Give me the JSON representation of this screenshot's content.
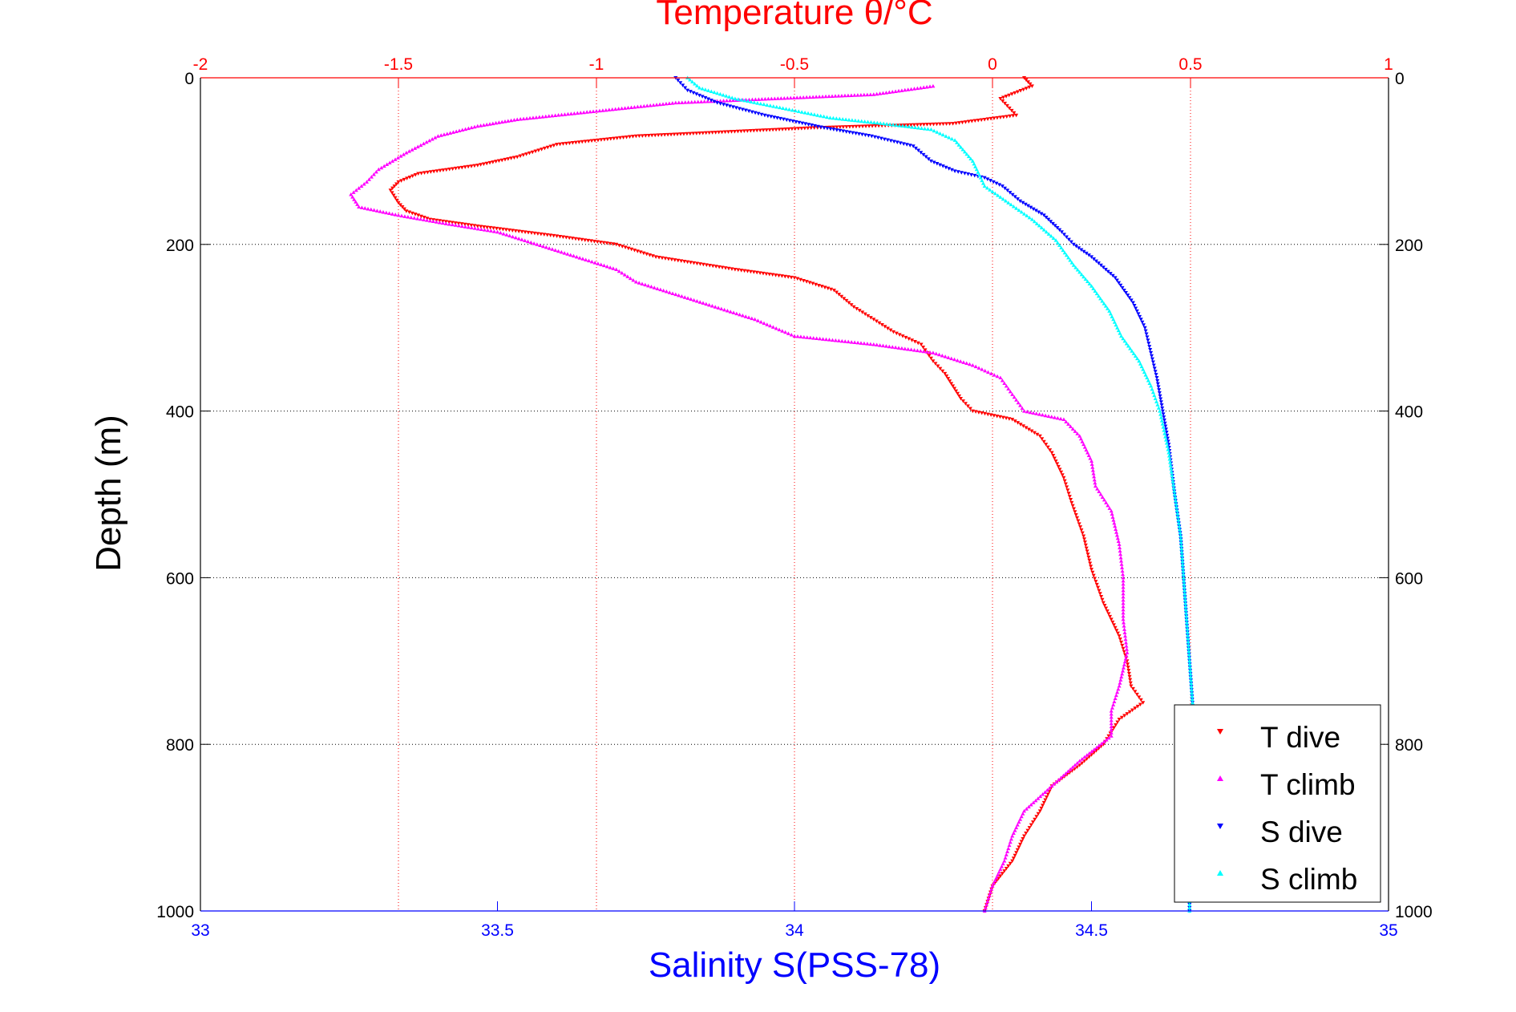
{
  "chart_data": {
    "type": "scatter",
    "title": "",
    "temperature_axis": {
      "label": "Temperature θ/°C",
      "range": [
        -2,
        1
      ],
      "ticks": [
        "-2",
        "-1.5",
        "-1",
        "-0.5",
        "0",
        "0.5",
        "1"
      ],
      "position": "top",
      "color": "#ff0000"
    },
    "salinity_axis": {
      "label": "Salinity S(PSS-78)",
      "range": [
        33,
        35
      ],
      "ticks": [
        "33",
        "33.5",
        "34",
        "34.5",
        "35"
      ],
      "position": "bottom",
      "color": "#0000ff"
    },
    "depth_axis": {
      "label": "Depth (m)",
      "range": [
        0,
        1000
      ],
      "reversed": true,
      "ticks": [
        "0",
        "200",
        "400",
        "600",
        "800",
        "1000"
      ]
    },
    "grid": true,
    "legend": {
      "position": "bottom-right"
    },
    "series": [
      {
        "name": "T dive",
        "variable": "temperature",
        "marker": "triangle-down",
        "color": "#ff0000",
        "points": [
          [
            0.08,
            0
          ],
          [
            0.1,
            10
          ],
          [
            0.02,
            25
          ],
          [
            0.06,
            45
          ],
          [
            -0.1,
            55
          ],
          [
            -0.45,
            60
          ],
          [
            -0.9,
            70
          ],
          [
            -1.1,
            80
          ],
          [
            -1.2,
            95
          ],
          [
            -1.3,
            105
          ],
          [
            -1.45,
            115
          ],
          [
            -1.5,
            125
          ],
          [
            -1.52,
            135
          ],
          [
            -1.5,
            150
          ],
          [
            -1.48,
            160
          ],
          [
            -1.42,
            170
          ],
          [
            -1.3,
            178
          ],
          [
            -1.1,
            190
          ],
          [
            -0.95,
            200
          ],
          [
            -0.85,
            215
          ],
          [
            -0.65,
            230
          ],
          [
            -0.5,
            240
          ],
          [
            -0.4,
            255
          ],
          [
            -0.35,
            275
          ],
          [
            -0.3,
            290
          ],
          [
            -0.25,
            305
          ],
          [
            -0.18,
            320
          ],
          [
            -0.15,
            340
          ],
          [
            -0.12,
            355
          ],
          [
            -0.1,
            370
          ],
          [
            -0.08,
            385
          ],
          [
            -0.05,
            400
          ],
          [
            0.05,
            410
          ],
          [
            0.12,
            430
          ],
          [
            0.15,
            450
          ],
          [
            0.18,
            480
          ],
          [
            0.2,
            510
          ],
          [
            0.23,
            550
          ],
          [
            0.25,
            590
          ],
          [
            0.28,
            630
          ],
          [
            0.32,
            670
          ],
          [
            0.34,
            700
          ],
          [
            0.35,
            730
          ],
          [
            0.38,
            750
          ],
          [
            0.32,
            770
          ],
          [
            0.28,
            800
          ],
          [
            0.22,
            825
          ],
          [
            0.15,
            850
          ],
          [
            0.12,
            880
          ],
          [
            0.08,
            910
          ],
          [
            0.05,
            940
          ],
          [
            0.0,
            970
          ],
          [
            -0.02,
            1000
          ]
        ]
      },
      {
        "name": "T climb",
        "variable": "temperature",
        "marker": "triangle-up",
        "color": "#ff00ff",
        "points": [
          [
            -0.15,
            10
          ],
          [
            -0.3,
            20
          ],
          [
            -0.8,
            30
          ],
          [
            -1.0,
            40
          ],
          [
            -1.2,
            50
          ],
          [
            -1.3,
            58
          ],
          [
            -1.4,
            70
          ],
          [
            -1.48,
            90
          ],
          [
            -1.55,
            110
          ],
          [
            -1.58,
            125
          ],
          [
            -1.62,
            140
          ],
          [
            -1.6,
            155
          ],
          [
            -1.5,
            165
          ],
          [
            -1.38,
            175
          ],
          [
            -1.25,
            185
          ],
          [
            -1.15,
            200
          ],
          [
            -1.05,
            215
          ],
          [
            -0.95,
            230
          ],
          [
            -0.9,
            245
          ],
          [
            -0.8,
            260
          ],
          [
            -0.7,
            275
          ],
          [
            -0.6,
            290
          ],
          [
            -0.5,
            310
          ],
          [
            -0.3,
            320
          ],
          [
            -0.15,
            330
          ],
          [
            -0.05,
            345
          ],
          [
            0.02,
            360
          ],
          [
            0.05,
            380
          ],
          [
            0.08,
            400
          ],
          [
            0.18,
            410
          ],
          [
            0.22,
            430
          ],
          [
            0.25,
            460
          ],
          [
            0.26,
            490
          ],
          [
            0.3,
            520
          ],
          [
            0.32,
            560
          ],
          [
            0.33,
            600
          ],
          [
            0.33,
            650
          ],
          [
            0.34,
            690
          ],
          [
            0.32,
            730
          ],
          [
            0.3,
            760
          ],
          [
            0.3,
            790
          ],
          [
            0.22,
            820
          ],
          [
            0.15,
            850
          ],
          [
            0.08,
            880
          ],
          [
            0.05,
            910
          ],
          [
            0.03,
            940
          ],
          [
            0.0,
            970
          ],
          [
            -0.02,
            1000
          ]
        ]
      },
      {
        "name": "S dive",
        "variable": "salinity",
        "marker": "triangle-down",
        "color": "#0000ff",
        "points": [
          [
            33.8,
            0
          ],
          [
            33.82,
            15
          ],
          [
            33.87,
            30
          ],
          [
            33.95,
            45
          ],
          [
            34.05,
            60
          ],
          [
            34.13,
            70
          ],
          [
            34.2,
            82
          ],
          [
            34.23,
            100
          ],
          [
            34.27,
            112
          ],
          [
            34.32,
            120
          ],
          [
            34.35,
            130
          ],
          [
            34.38,
            148
          ],
          [
            34.42,
            165
          ],
          [
            34.45,
            185
          ],
          [
            34.47,
            200
          ],
          [
            34.5,
            215
          ],
          [
            34.54,
            240
          ],
          [
            34.57,
            270
          ],
          [
            34.59,
            300
          ],
          [
            34.6,
            330
          ],
          [
            34.61,
            360
          ],
          [
            34.62,
            400
          ],
          [
            34.63,
            440
          ],
          [
            34.64,
            500
          ],
          [
            34.65,
            550
          ],
          [
            34.655,
            600
          ],
          [
            34.66,
            650
          ],
          [
            34.665,
            700
          ],
          [
            34.67,
            750
          ],
          [
            34.67,
            800
          ],
          [
            34.668,
            850
          ],
          [
            34.666,
            900
          ],
          [
            34.665,
            950
          ],
          [
            34.665,
            1000
          ]
        ]
      },
      {
        "name": "S climb",
        "variable": "salinity",
        "marker": "triangle-up",
        "color": "#00ffff",
        "points": [
          [
            33.82,
            0
          ],
          [
            33.84,
            12
          ],
          [
            33.9,
            25
          ],
          [
            33.97,
            35
          ],
          [
            34.06,
            48
          ],
          [
            34.15,
            55
          ],
          [
            34.23,
            62
          ],
          [
            34.27,
            75
          ],
          [
            34.3,
            100
          ],
          [
            34.32,
            130
          ],
          [
            34.36,
            150
          ],
          [
            34.4,
            170
          ],
          [
            34.44,
            195
          ],
          [
            34.47,
            225
          ],
          [
            34.5,
            250
          ],
          [
            34.53,
            280
          ],
          [
            34.55,
            310
          ],
          [
            34.58,
            340
          ],
          [
            34.6,
            370
          ],
          [
            34.615,
            400
          ],
          [
            34.63,
            450
          ],
          [
            34.64,
            500
          ],
          [
            34.65,
            550
          ],
          [
            34.655,
            600
          ],
          [
            34.66,
            650
          ],
          [
            34.665,
            700
          ],
          [
            34.67,
            750
          ],
          [
            34.67,
            800
          ],
          [
            34.668,
            850
          ],
          [
            34.666,
            900
          ],
          [
            34.665,
            950
          ],
          [
            34.665,
            1000
          ]
        ]
      }
    ]
  }
}
